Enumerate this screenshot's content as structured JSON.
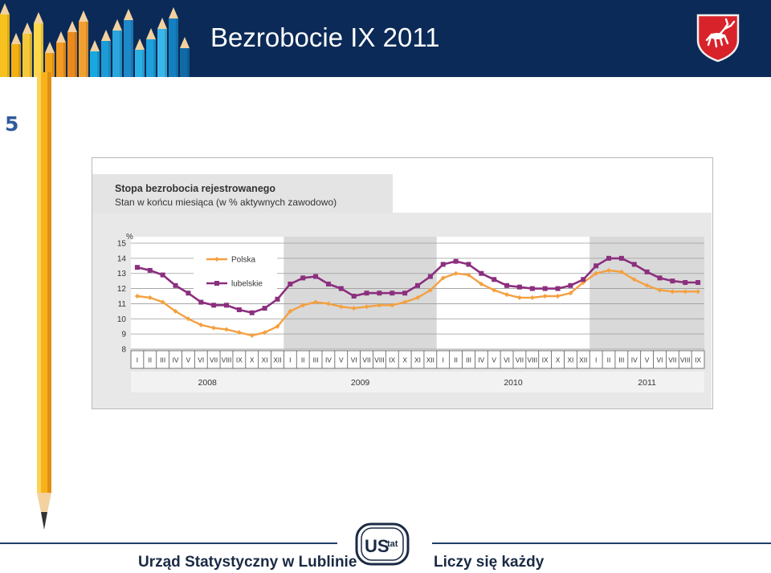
{
  "slide": {
    "title": "Bezrobocie IX 2011",
    "number": "5",
    "footer_left": "Urząd Statystyczny w Lublinie",
    "footer_right": "Liczy się każdy",
    "logo_text": "US tat",
    "crest_icon": "white-deer-on-red-shield-icon",
    "colors": {
      "header": "#0b2a57",
      "accent": "#2f5b9a"
    }
  },
  "chart_data": {
    "type": "line",
    "title": "Stopa bezrobocia rejestrowanego",
    "subtitle": "Stan w końcu miesiąca (w % aktywnych zawodowo)",
    "ylabel": "%",
    "ylim": [
      8,
      15
    ],
    "yticks": [
      8,
      9,
      10,
      11,
      12,
      13,
      14,
      15
    ],
    "grid": true,
    "legend_placement": "top-left",
    "categories": [
      "I",
      "II",
      "III",
      "IV",
      "V",
      "VI",
      "VII",
      "VIII",
      "IX",
      "X",
      "XI",
      "XII",
      "I",
      "II",
      "III",
      "IV",
      "V",
      "VI",
      "VII",
      "VIII",
      "IX",
      "X",
      "XI",
      "XII",
      "I",
      "II",
      "III",
      "IV",
      "V",
      "VI",
      "VII",
      "VIII",
      "IX",
      "X",
      "XI",
      "XII",
      "I",
      "II",
      "III",
      "IV",
      "V",
      "VI",
      "VII",
      "VIII",
      "IX"
    ],
    "years": [
      "2008",
      "2009",
      "2010",
      "2011"
    ],
    "series": [
      {
        "name": "Polska",
        "color": "#f5a040",
        "values": [
          11.5,
          11.4,
          11.1,
          10.5,
          10.0,
          9.6,
          9.4,
          9.3,
          9.1,
          8.9,
          9.1,
          9.5,
          10.5,
          10.9,
          11.1,
          11.0,
          10.8,
          10.7,
          10.8,
          10.9,
          10.9,
          11.1,
          11.4,
          11.9,
          12.7,
          13.0,
          12.9,
          12.3,
          11.9,
          11.6,
          11.4,
          11.4,
          11.5,
          11.5,
          11.7,
          12.4,
          13.0,
          13.2,
          13.1,
          12.6,
          12.2,
          11.9,
          11.8,
          11.8,
          11.8
        ]
      },
      {
        "name": "lubelskie",
        "color": "#8b2f7e",
        "values": [
          13.4,
          13.2,
          12.9,
          12.2,
          11.7,
          11.1,
          10.9,
          10.9,
          10.6,
          10.4,
          10.7,
          11.3,
          12.3,
          12.7,
          12.8,
          12.3,
          12.0,
          11.5,
          11.7,
          11.7,
          11.7,
          11.7,
          12.2,
          12.8,
          13.6,
          13.8,
          13.6,
          13.0,
          12.6,
          12.2,
          12.1,
          12.0,
          12.0,
          12.0,
          12.2,
          12.6,
          13.5,
          14.0,
          14.0,
          13.6,
          13.1,
          12.7,
          12.5,
          12.4,
          12.4
        ]
      }
    ]
  }
}
